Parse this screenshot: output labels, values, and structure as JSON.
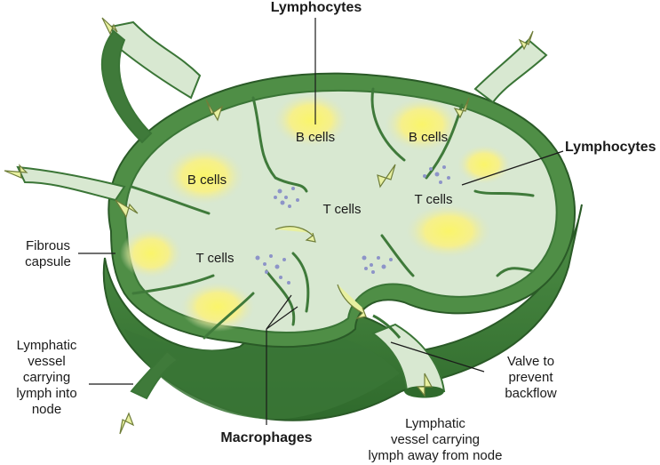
{
  "labels": {
    "lymphocytes_top": "Lymphocytes",
    "lymphocytes_right": "Lymphocytes",
    "b_cells_1": "B cells",
    "b_cells_2": "B cells",
    "b_cells_3": "B cells",
    "t_cells_1": "T cells",
    "t_cells_2": "T cells",
    "t_cells_3": "T cells",
    "fibrous_capsule": [
      "Fibrous",
      "capsule"
    ],
    "lymphatic_in": [
      "Lymphatic",
      "vessel",
      "carrying",
      "lymph into",
      "node"
    ],
    "macrophages": "Macrophages",
    "lymphatic_out": [
      "Lymphatic",
      "vessel carrying",
      "lymph away from node"
    ],
    "valve": [
      "Valve to",
      "prevent",
      "backflow"
    ]
  },
  "colors": {
    "capsule_dark": "#3e7a3a",
    "capsule_mid": "#5b9a52",
    "interior": "#d9e8d2",
    "follicle": "#f7f07a",
    "arrow": "#e8f0a0",
    "dots": "#8d94c8"
  }
}
